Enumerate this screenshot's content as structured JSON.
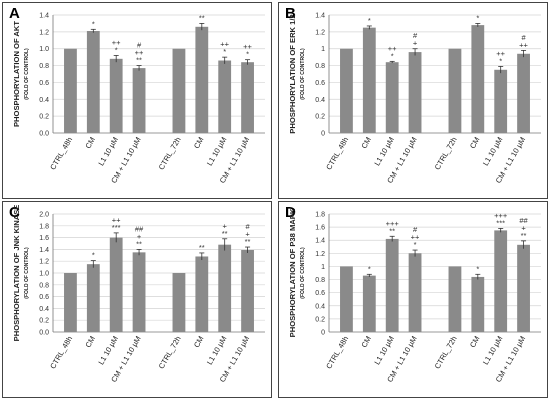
{
  "chart_data": [
    {
      "panel": "A",
      "type": "bar",
      "ylabel": "PHOSPHORYLATION OF AKT",
      "ysublabel": "(FOLD OF CONTROL)",
      "ylim": [
        0,
        1.4
      ],
      "yticks": [
        "0.0",
        "0.2",
        "0.4",
        "0.6",
        "0.8",
        "1.0",
        "1.2",
        "1.4"
      ],
      "categories": [
        "CTRL_48h",
        "CM",
        "L1 10 µM",
        "CM + L1 10 µM",
        "CTRL_72h",
        "CM",
        "L1 10 µM",
        "CM + L1 10 µM"
      ],
      "values": [
        1.0,
        1.21,
        0.88,
        0.77,
        1.0,
        1.26,
        0.86,
        0.84
      ],
      "errors": [
        0.0,
        0.02,
        0.04,
        0.03,
        0.0,
        0.04,
        0.04,
        0.03
      ],
      "annotations": [
        [],
        [
          "*"
        ],
        [
          "++",
          "*"
        ],
        [
          "#",
          "++",
          "**"
        ],
        [],
        [
          "**"
        ],
        [
          "++",
          "*"
        ],
        [
          "++",
          "*"
        ]
      ],
      "grid": true
    },
    {
      "panel": "B",
      "type": "bar",
      "ylabel": "PHOSPHORYLATION OF ERK 1/2",
      "ysublabel": "(FOLD OF CONTROL)",
      "ylim": [
        0,
        1.4
      ],
      "yticks": [
        "0",
        "0.2",
        "0.4",
        "0.6",
        "0.8",
        "1",
        "1.2",
        "1.4"
      ],
      "categories": [
        "CTRL_48h",
        "CM",
        "L1 10 µM",
        "CM + L1 10 µM",
        "CTRL_72h",
        "CM",
        "L1 10 µM",
        "CM + L1 10 µM"
      ],
      "values": [
        1.0,
        1.25,
        0.84,
        0.96,
        1.0,
        1.28,
        0.75,
        0.94
      ],
      "errors": [
        0.0,
        0.02,
        0.01,
        0.04,
        0.0,
        0.02,
        0.04,
        0.04
      ],
      "annotations": [
        [],
        [
          "*"
        ],
        [
          "++",
          "*"
        ],
        [
          "#",
          "+"
        ],
        [],
        [
          "*"
        ],
        [
          "++",
          "*"
        ],
        [
          "#",
          "++"
        ]
      ],
      "grid": true
    },
    {
      "panel": "C",
      "type": "bar",
      "ylabel": "PHOSPHORYLATION OF JNK KINASE",
      "ysublabel": "(FOLD OF CONTROL)",
      "ylim": [
        0,
        2.0
      ],
      "yticks": [
        "0.0",
        "0.2",
        "0.4",
        "0.6",
        "0.8",
        "1.0",
        "1.2",
        "1.4",
        "1.6",
        "1.8",
        "2.0"
      ],
      "categories": [
        "CTRL_48h",
        "CM",
        "L1 10 µM",
        "CM + L1 10 µM",
        "CTRL_72h",
        "CM",
        "L1 10 µM",
        "CM + L1 10 µM"
      ],
      "values": [
        1.0,
        1.15,
        1.6,
        1.35,
        1.0,
        1.28,
        1.48,
        1.39
      ],
      "errors": [
        0.0,
        0.06,
        0.08,
        0.05,
        0.0,
        0.06,
        0.1,
        0.05
      ],
      "annotations": [
        [],
        [
          "*"
        ],
        [
          "++",
          "***"
        ],
        [
          "##",
          "+",
          "**"
        ],
        [],
        [
          "**"
        ],
        [
          "+",
          "**"
        ],
        [
          "#",
          "+",
          "**"
        ]
      ],
      "grid": true
    },
    {
      "panel": "D",
      "type": "bar",
      "ylabel": "PHOSPHORYLATION OF P38 MAPK",
      "ysublabel": "(FOLD OF CONTROL)",
      "ylim": [
        0,
        1.8
      ],
      "yticks": [
        "0",
        "0.2",
        "0.4",
        "0.6",
        "0.8",
        "1",
        "1.2",
        "1.4",
        "1.6",
        "1.8"
      ],
      "categories": [
        "CTRL_48h",
        "CM",
        "L1 10 µM",
        "CM + L1 10 µM",
        "CTRL_72h",
        "CM",
        "L1 10 µM",
        "CM + L1 10 µM"
      ],
      "values": [
        1.0,
        0.86,
        1.42,
        1.2,
        1.0,
        0.84,
        1.55,
        1.33
      ],
      "errors": [
        0.0,
        0.02,
        0.04,
        0.05,
        0.0,
        0.04,
        0.03,
        0.06
      ],
      "annotations": [
        [],
        [
          "*"
        ],
        [
          "+++",
          "**"
        ],
        [
          "#",
          "++",
          "*"
        ],
        [],
        [
          "*"
        ],
        [
          "+++",
          "***"
        ],
        [
          "##",
          "+",
          "**"
        ]
      ],
      "grid": true
    }
  ]
}
